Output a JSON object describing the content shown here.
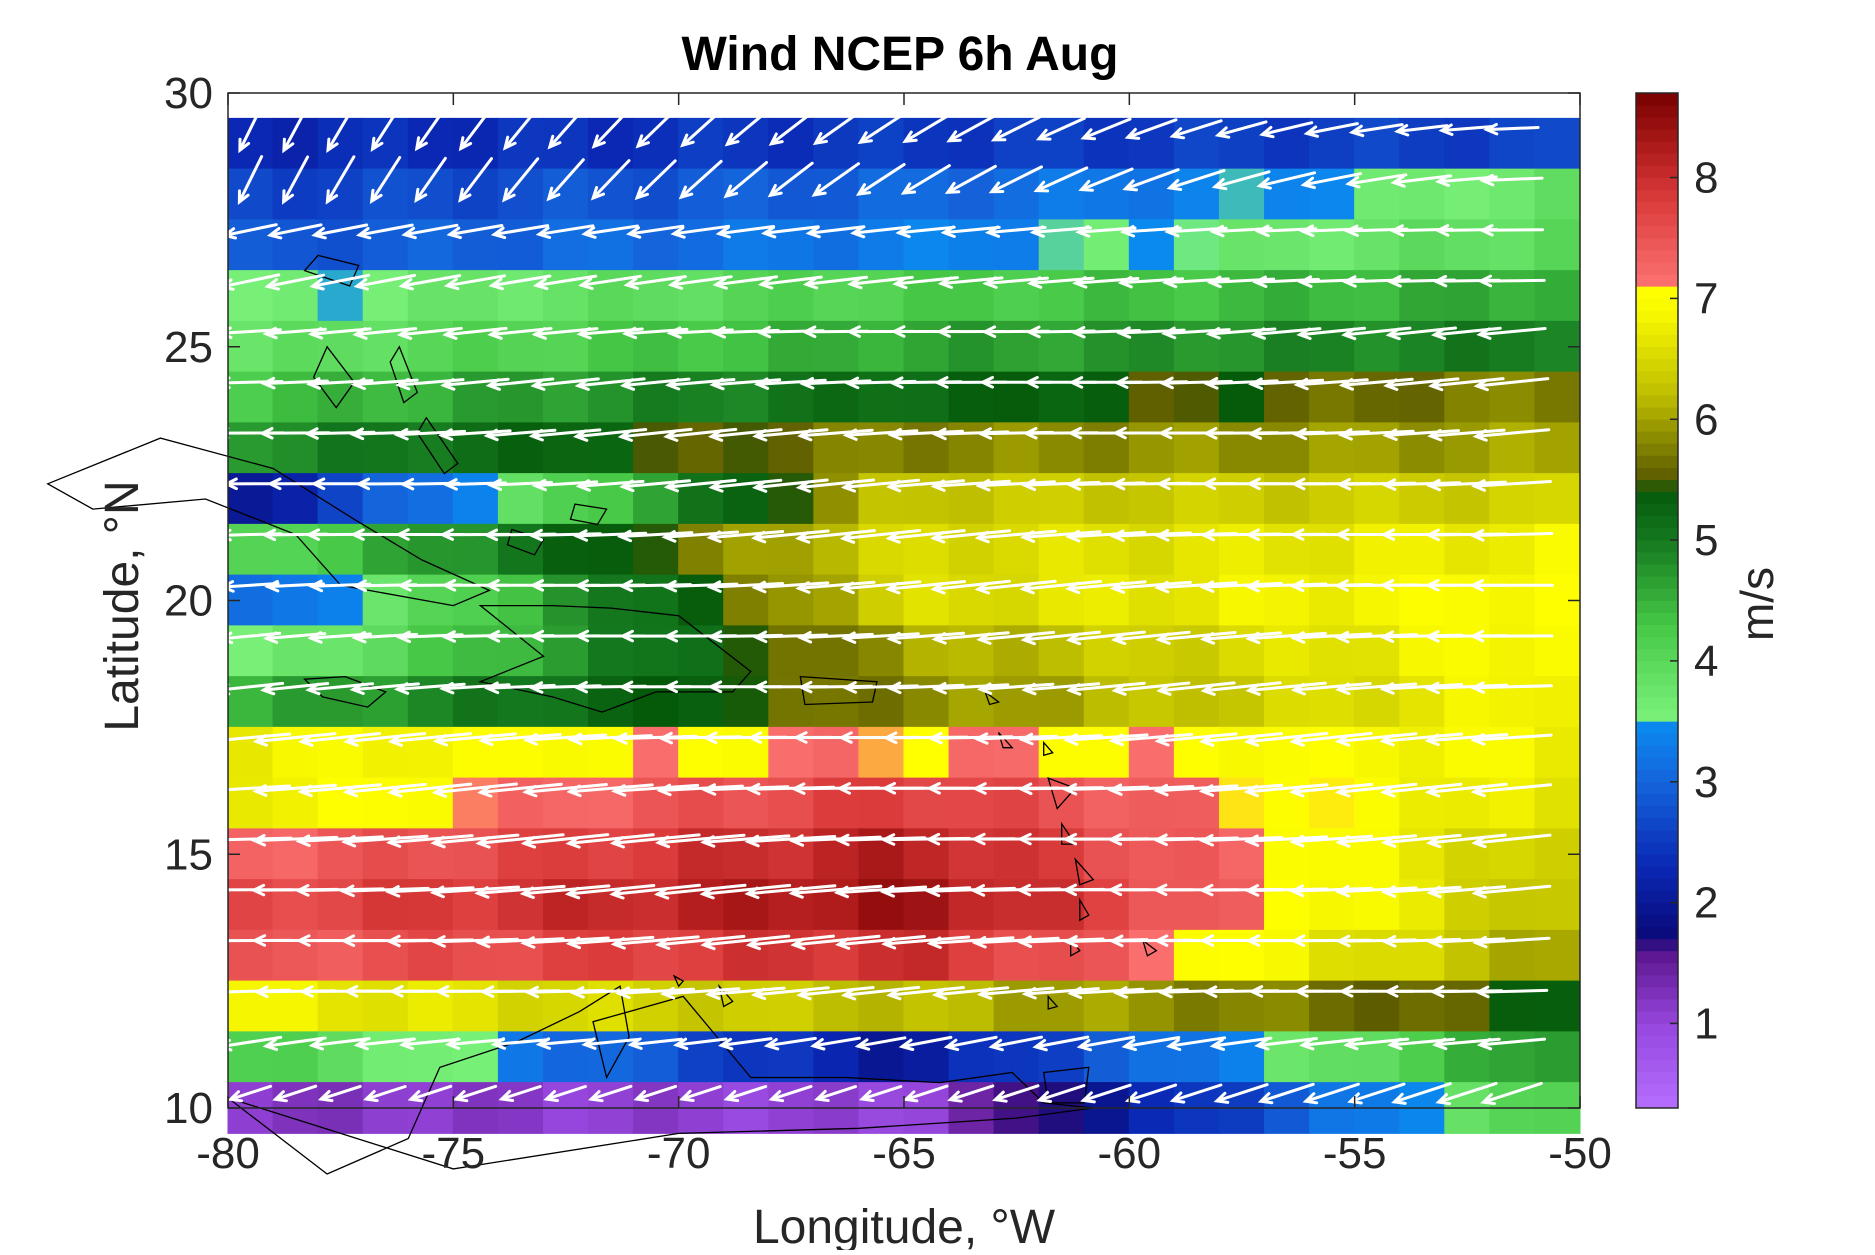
{
  "chart_data": {
    "type": "heatmap",
    "title": "Wind NCEP 6h Aug",
    "xlabel": "Longitude, °W",
    "ylabel": "Latitude, °N",
    "colorbar_label": "m/s",
    "xlim": [
      -80,
      -50
    ],
    "ylim": [
      10,
      30
    ],
    "xticks": [
      -80,
      -75,
      -70,
      -65,
      -60,
      -55,
      -50
    ],
    "yticks": [
      10,
      15,
      20,
      25,
      30
    ],
    "colorbar_ticks": [
      1,
      2,
      3,
      4,
      5,
      6,
      7,
      8
    ],
    "colorbar_range": [
      0.3,
      8.7
    ],
    "grid": false,
    "overlay": "white wind vectors (mostly easterly trade winds) and black coastlines",
    "wind_speed_bands": [
      {
        "lat": 29,
        "west": 2.3,
        "mid": 2.5,
        "east": 2.6
      },
      {
        "lat": 28,
        "west": 2.6,
        "mid": 3.0,
        "east": 3.8
      },
      {
        "lat": 27,
        "west": 2.8,
        "mid": 3.3,
        "east": 4.0
      },
      {
        "lat": 26,
        "west": 3.5,
        "mid": 4.2,
        "east": 4.6
      },
      {
        "lat": 25,
        "west": 3.8,
        "mid": 4.6,
        "east": 5.0
      },
      {
        "lat": 24,
        "west": 4.3,
        "mid": 5.2,
        "east": 5.8
      },
      {
        "lat": 23,
        "west": 4.8,
        "mid": 5.8,
        "east": 6.0
      },
      {
        "lat": 22,
        "west": 2.0,
        "mid": 6.3,
        "east": 6.4
      },
      {
        "lat": 21,
        "west": 4.0,
        "mid": 6.5,
        "east": 6.8
      },
      {
        "lat": 20,
        "west": 3.0,
        "mid": 6.5,
        "east": 7.0
      },
      {
        "lat": 19,
        "west": 3.5,
        "mid": 6.0,
        "east": 7.0
      },
      {
        "lat": 18,
        "west": 4.5,
        "mid": 5.8,
        "east": 6.9
      },
      {
        "lat": 17,
        "west": 6.8,
        "mid": 7.2,
        "east": 6.8
      },
      {
        "lat": 16,
        "west": 6.8,
        "mid": 7.8,
        "east": 6.6
      },
      {
        "lat": 15,
        "west": 7.3,
        "mid": 8.2,
        "east": 6.3
      },
      {
        "lat": 14,
        "west": 7.6,
        "mid": 8.4,
        "east": 6.2
      },
      {
        "lat": 13,
        "west": 7.4,
        "mid": 8.0,
        "east": 6.0
      },
      {
        "lat": 12,
        "west": 6.8,
        "mid": 6.2,
        "east": 5.4
      },
      {
        "lat": 11,
        "west": 4.2,
        "mid": 2.0,
        "east": 4.8
      },
      {
        "lat": 10,
        "west": 1.2,
        "mid": 1.0,
        "east": 4.2
      }
    ]
  }
}
